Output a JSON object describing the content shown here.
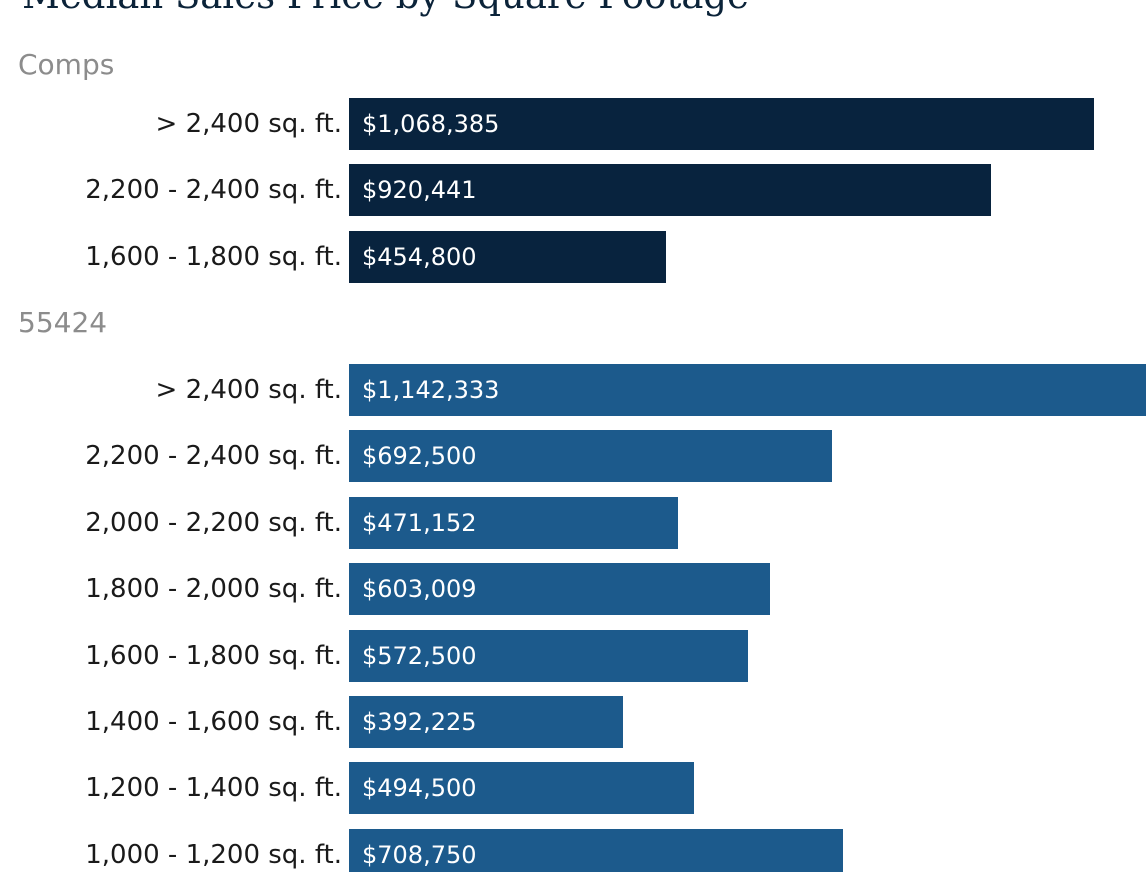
{
  "chart_data": {
    "type": "bar",
    "orientation": "horizontal",
    "title": "Median Sales Price by Square Footage",
    "grid": false,
    "groups": [
      {
        "name": "Comps",
        "color": "#08233e",
        "categories": [
          "> 2,400 sq. ft.",
          "2,200 - 2,400 sq. ft.",
          "1,600 - 1,800 sq. ft."
        ],
        "values": [
          1068385,
          920441,
          454800
        ],
        "value_labels": [
          "$1,068,385",
          "$920,441",
          "$454,800"
        ]
      },
      {
        "name": "55424",
        "color": "#1c5a8c",
        "categories": [
          "> 2,400 sq. ft.",
          "2,200 - 2,400 sq. ft.",
          "2,000 - 2,200 sq. ft.",
          "1,800 - 2,000 sq. ft.",
          "1,600 - 1,800 sq. ft.",
          "1,400 - 1,600 sq. ft.",
          "1,200 - 1,400 sq. ft.",
          "1,000 - 1,200 sq. ft."
        ],
        "values": [
          1142333,
          692500,
          471152,
          603009,
          572500,
          392225,
          494500,
          708750
        ],
        "value_labels": [
          "$1,142,333",
          "$692,500",
          "$471,152",
          "$603,009",
          "$572,500",
          "$392,225",
          "$494,500",
          "$708,750"
        ]
      }
    ]
  }
}
